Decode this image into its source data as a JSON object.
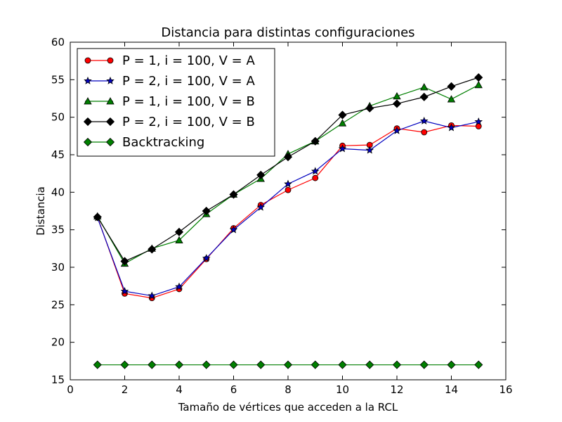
{
  "chart_data": {
    "type": "line",
    "title": "Distancia para distintas configuraciones",
    "xlabel": "Tamaño de vértices que acceden a la RCL",
    "ylabel": "Distancia",
    "xlim": [
      0,
      16
    ],
    "ylim": [
      15,
      60
    ],
    "xticks": [
      0,
      2,
      4,
      6,
      8,
      10,
      12,
      14,
      16
    ],
    "yticks": [
      15,
      20,
      25,
      30,
      35,
      40,
      45,
      50,
      55,
      60
    ],
    "grid": false,
    "legend_position": "top-left",
    "x": [
      1,
      2,
      3,
      4,
      5,
      6,
      7,
      8,
      9,
      10,
      11,
      12,
      13,
      14,
      15
    ],
    "series": [
      {
        "name": "P = 1, i = 100, V = A",
        "color": "#ff0000",
        "marker": "circle",
        "values": [
          36.7,
          26.5,
          25.9,
          27.1,
          31.1,
          35.2,
          38.3,
          40.3,
          41.9,
          46.2,
          46.3,
          48.5,
          48.0,
          48.9,
          48.8
        ]
      },
      {
        "name": "P = 2, i = 100, V = A",
        "color": "#0000bf",
        "marker": "star",
        "values": [
          36.6,
          26.8,
          26.2,
          27.4,
          31.2,
          35.0,
          38.0,
          41.1,
          42.8,
          45.8,
          45.6,
          48.2,
          49.5,
          48.6,
          49.4
        ]
      },
      {
        "name": "P = 1, i = 100, V = B",
        "color": "#007f00",
        "marker": "triangle",
        "values": [
          36.8,
          30.5,
          32.5,
          33.6,
          37.1,
          39.7,
          41.8,
          45.1,
          46.8,
          49.2,
          51.5,
          52.8,
          54.0,
          52.4,
          54.3
        ]
      },
      {
        "name": "P = 2, i = 100, V = B",
        "color": "#000000",
        "marker": "diamond",
        "values": [
          36.7,
          30.8,
          32.4,
          34.7,
          37.5,
          39.7,
          42.3,
          44.7,
          46.8,
          50.3,
          51.2,
          51.8,
          52.7,
          54.1,
          55.3
        ]
      },
      {
        "name": "Backtracking",
        "color": "#007f00",
        "marker": "diamond",
        "values": [
          17.0,
          17.0,
          17.0,
          17.0,
          17.0,
          17.0,
          17.0,
          17.0,
          17.0,
          17.0,
          17.0,
          17.0,
          17.0,
          17.0,
          17.0
        ]
      }
    ]
  }
}
